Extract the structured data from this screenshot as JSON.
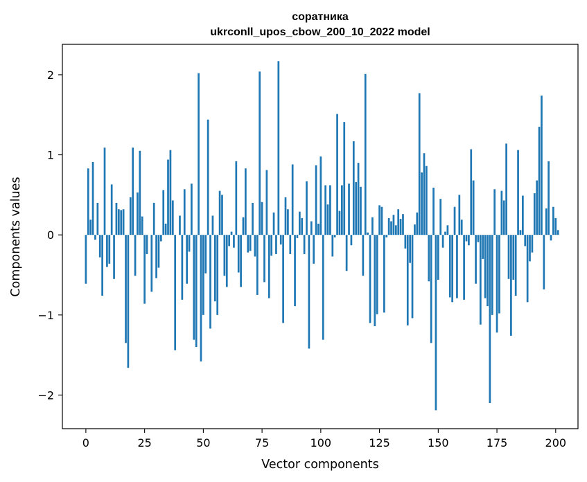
{
  "chart_data": {
    "type": "bar",
    "title": "соратника",
    "subtitle": "ukrconll_upos_cbow_200_10_2022 model",
    "xlabel": "Vector components",
    "ylabel": "Components values",
    "xlim": [
      -10,
      209.5
    ],
    "ylim": [
      -2.42,
      2.38
    ],
    "xticks": [
      0,
      25,
      50,
      75,
      100,
      125,
      150,
      175,
      200
    ],
    "yticks": [
      -2,
      -1,
      0,
      1,
      2
    ],
    "ytick_labels": [
      "−2",
      "−1",
      "0",
      "1",
      "2"
    ],
    "bar_color": "#1f77b4",
    "grid": false,
    "values": [
      -0.61,
      0.83,
      0.19,
      0.91,
      -0.06,
      0.4,
      -0.28,
      -0.76,
      1.09,
      -0.4,
      -0.36,
      0.63,
      -0.55,
      0.4,
      0.32,
      0.31,
      0.32,
      -1.35,
      -1.66,
      0.47,
      1.09,
      -0.51,
      0.53,
      1.05,
      0.23,
      -0.86,
      -0.24,
      0.0,
      -0.71,
      0.4,
      -0.54,
      -0.41,
      -0.08,
      0.56,
      0.14,
      0.94,
      1.06,
      0.43,
      -1.44,
      0.0,
      0.24,
      -0.81,
      0.57,
      -0.61,
      -0.21,
      0.64,
      -1.31,
      -1.4,
      2.02,
      -1.58,
      -1.0,
      -0.48,
      1.44,
      -1.17,
      0.24,
      -0.83,
      -1.0,
      0.55,
      0.5,
      -0.51,
      -0.65,
      -0.14,
      0.04,
      -0.16,
      0.92,
      -0.47,
      -0.65,
      0.22,
      0.83,
      -0.22,
      -0.2,
      0.4,
      -0.27,
      -0.75,
      2.04,
      0.41,
      -0.59,
      0.81,
      -0.79,
      -0.26,
      0.28,
      -0.24,
      2.17,
      -0.12,
      -1.1,
      0.47,
      0.32,
      -0.24,
      0.88,
      -0.89,
      -0.04,
      0.29,
      0.21,
      -0.24,
      0.67,
      -1.42,
      0.17,
      -0.36,
      0.87,
      0.14,
      0.98,
      -1.31,
      0.62,
      0.38,
      0.62,
      -0.27,
      -0.03,
      1.51,
      0.3,
      0.62,
      1.41,
      -0.45,
      0.64,
      -0.13,
      1.17,
      0.66,
      0.9,
      0.6,
      -0.51,
      2.01,
      0.03,
      -1.1,
      0.22,
      -1.14,
      -0.99,
      0.37,
      0.35,
      -0.97,
      -0.03,
      0.21,
      0.17,
      0.25,
      0.12,
      0.32,
      0.2,
      0.26,
      -0.17,
      -1.13,
      -0.35,
      -1.04,
      0.13,
      0.28,
      1.77,
      0.78,
      1.02,
      0.86,
      -0.58,
      -1.35,
      0.59,
      -2.19,
      -0.56,
      0.45,
      -0.16,
      0.04,
      0.12,
      -0.78,
      -0.84,
      0.35,
      -0.79,
      0.5,
      0.19,
      -0.81,
      -0.08,
      -0.13,
      1.07,
      0.68,
      -0.61,
      -0.09,
      -1.12,
      -0.3,
      -0.79,
      -0.89,
      -2.1,
      -1.0,
      0.57,
      -1.22,
      -0.98,
      0.55,
      0.43,
      1.14,
      -0.55,
      -1.26,
      -0.56,
      -0.76,
      1.06,
      0.06,
      0.49,
      -0.14,
      -0.84,
      -0.33,
      -0.22,
      0.52,
      0.68,
      1.35,
      1.74,
      -0.68,
      0.33,
      0.92,
      -0.07,
      0.35,
      0.21,
      0.06
    ]
  }
}
